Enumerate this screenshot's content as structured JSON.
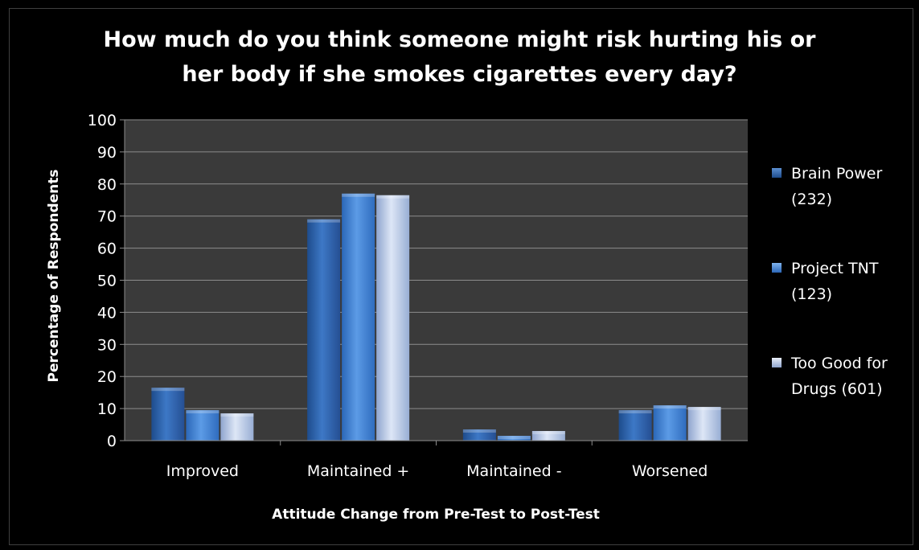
{
  "chart_data": {
    "type": "bar",
    "title": "How much do you think someone might risk hurting his or her body if she smokes cigarettes every day?",
    "title_lines": [
      "How much do you think someone might risk hurting his or",
      "her body if she smokes cigarettes every day?"
    ],
    "xlabel": "Attitude Change from Pre-Test to Post-Test",
    "ylabel": "Percentage of Respondents",
    "categories": [
      "Improved",
      "Maintained +",
      "Maintained -",
      "Worsened"
    ],
    "ylim": [
      0,
      100
    ],
    "yticks": [
      0,
      10,
      20,
      30,
      40,
      50,
      60,
      70,
      80,
      90,
      100
    ],
    "grid": true,
    "legend_position": "right",
    "series": [
      {
        "name": "Brain Power (232)",
        "legend_lines": [
          "Brain Power",
          "(232)"
        ],
        "values": [
          16.5,
          69,
          3.5,
          9.5
        ],
        "color": "#2E63A7"
      },
      {
        "name": "Project TNT (123)",
        "legend_lines": [
          "Project TNT",
          "(123)"
        ],
        "values": [
          9.5,
          77,
          1.5,
          11
        ],
        "color": "#3F7FD0"
      },
      {
        "name": "Too Good for Drugs (601)",
        "legend_lines": [
          "Too Good for",
          "Drugs  (601)"
        ],
        "values": [
          8.5,
          76.5,
          3,
          10.5
        ],
        "color": "#B9C7E3"
      }
    ]
  }
}
